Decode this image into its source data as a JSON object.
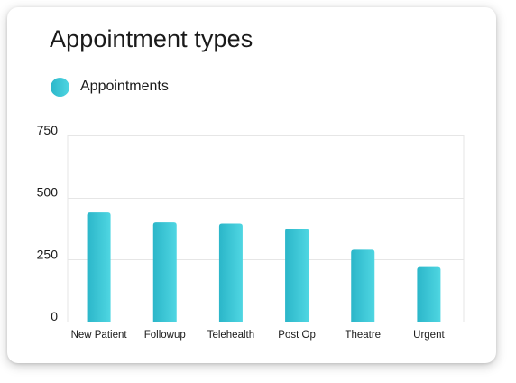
{
  "title": "Appointment types",
  "colors": {
    "bar_start": "#2bb6c9",
    "bar_end": "#4fd6e2",
    "grid": "#e6e6e6"
  },
  "chart_data": {
    "type": "bar",
    "title": "Appointment types",
    "xlabel": "",
    "ylabel": "",
    "categories": [
      "New Patient",
      "Followup",
      "Telehealth",
      "Post Op",
      "Theatre",
      "Urgent"
    ],
    "series": [
      {
        "name": "Appointments",
        "values": [
          440,
          400,
          395,
          375,
          290,
          220
        ]
      }
    ],
    "ylim": [
      0,
      750
    ],
    "yticks": [
      "0",
      "250",
      "500",
      "750"
    ],
    "grid": true,
    "legend": "top-left"
  }
}
